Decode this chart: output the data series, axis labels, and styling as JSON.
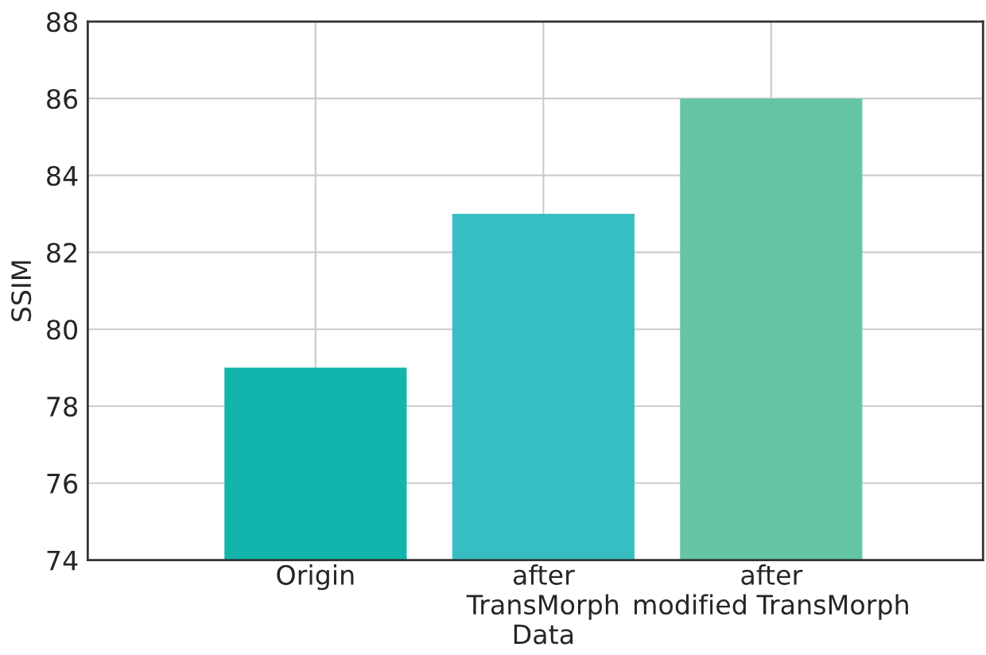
{
  "chart_data": {
    "type": "bar",
    "ylabel": "SSIM",
    "categories": [
      "Origin",
      "after\nTransMorph\nData",
      "after\nmodified TransMorph"
    ],
    "values": [
      79,
      83,
      86
    ],
    "colors": [
      "#12b5ab",
      "#36bec3",
      "#63c5a4"
    ],
    "ylim": [
      74,
      88
    ],
    "yticks": [
      74,
      76,
      78,
      80,
      82,
      84,
      86,
      88
    ],
    "grid": true
  }
}
